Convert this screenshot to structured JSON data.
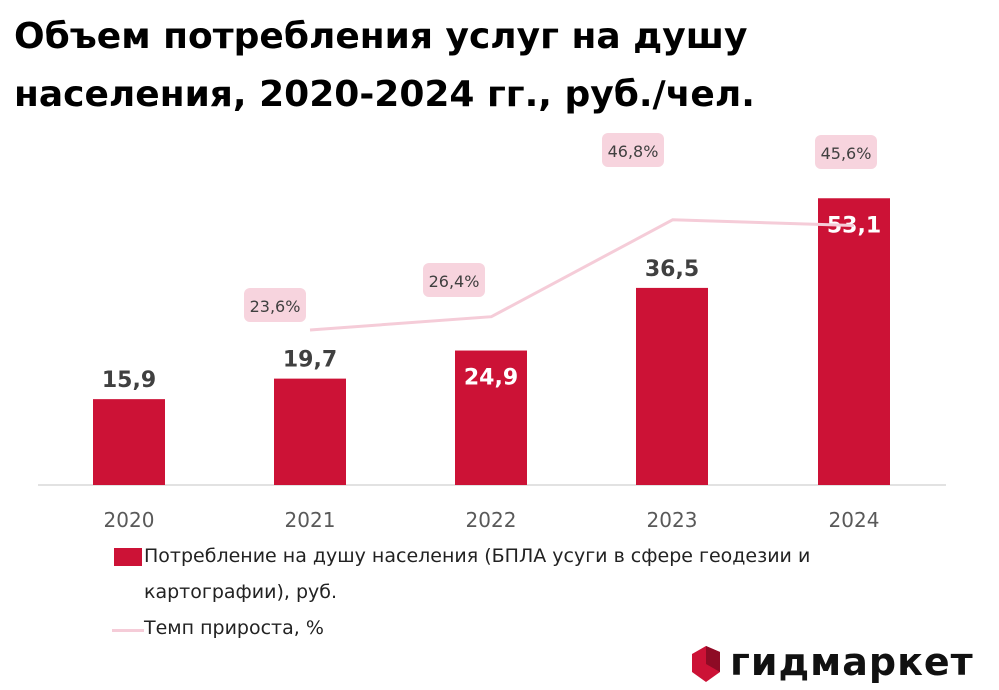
{
  "title": "Объем потребления услуг на душу населения, 2020-2024 гг., руб./чел.",
  "colors": {
    "bar": "#CC1236",
    "line": "#F5CCD8",
    "growth_label_bg": "#F7D4DE",
    "axis": "#D9D9D9"
  },
  "chart_data": {
    "type": "bar",
    "categories": [
      "2020",
      "2021",
      "2022",
      "2023",
      "2024"
    ],
    "series": [
      {
        "name": "Потребление на душу населения (БПЛА усуги в сфере геодезии и картографии), руб.",
        "type": "bar",
        "values": [
          15.9,
          19.7,
          24.9,
          36.5,
          53.1
        ],
        "labels": [
          "15,9",
          "19,7",
          "24,9",
          "36,5",
          "53,1"
        ]
      },
      {
        "name": "Темп прироста, %",
        "type": "line",
        "values": [
          null,
          23.6,
          26.4,
          46.8,
          45.6
        ],
        "labels": [
          "",
          "23,6%",
          "26,4%",
          "46,8%",
          "45,6%"
        ]
      }
    ],
    "ylim": [
      0,
      55
    ],
    "grid": false
  },
  "legend": {
    "bar_label": "Потребление на душу населения (БПЛА усуги в сфере геодезии и картографии), руб.",
    "line_label": "Темп прироста, %"
  },
  "logo": {
    "text": "гидмаркет",
    "icon": "gidmarket-logo-icon"
  }
}
